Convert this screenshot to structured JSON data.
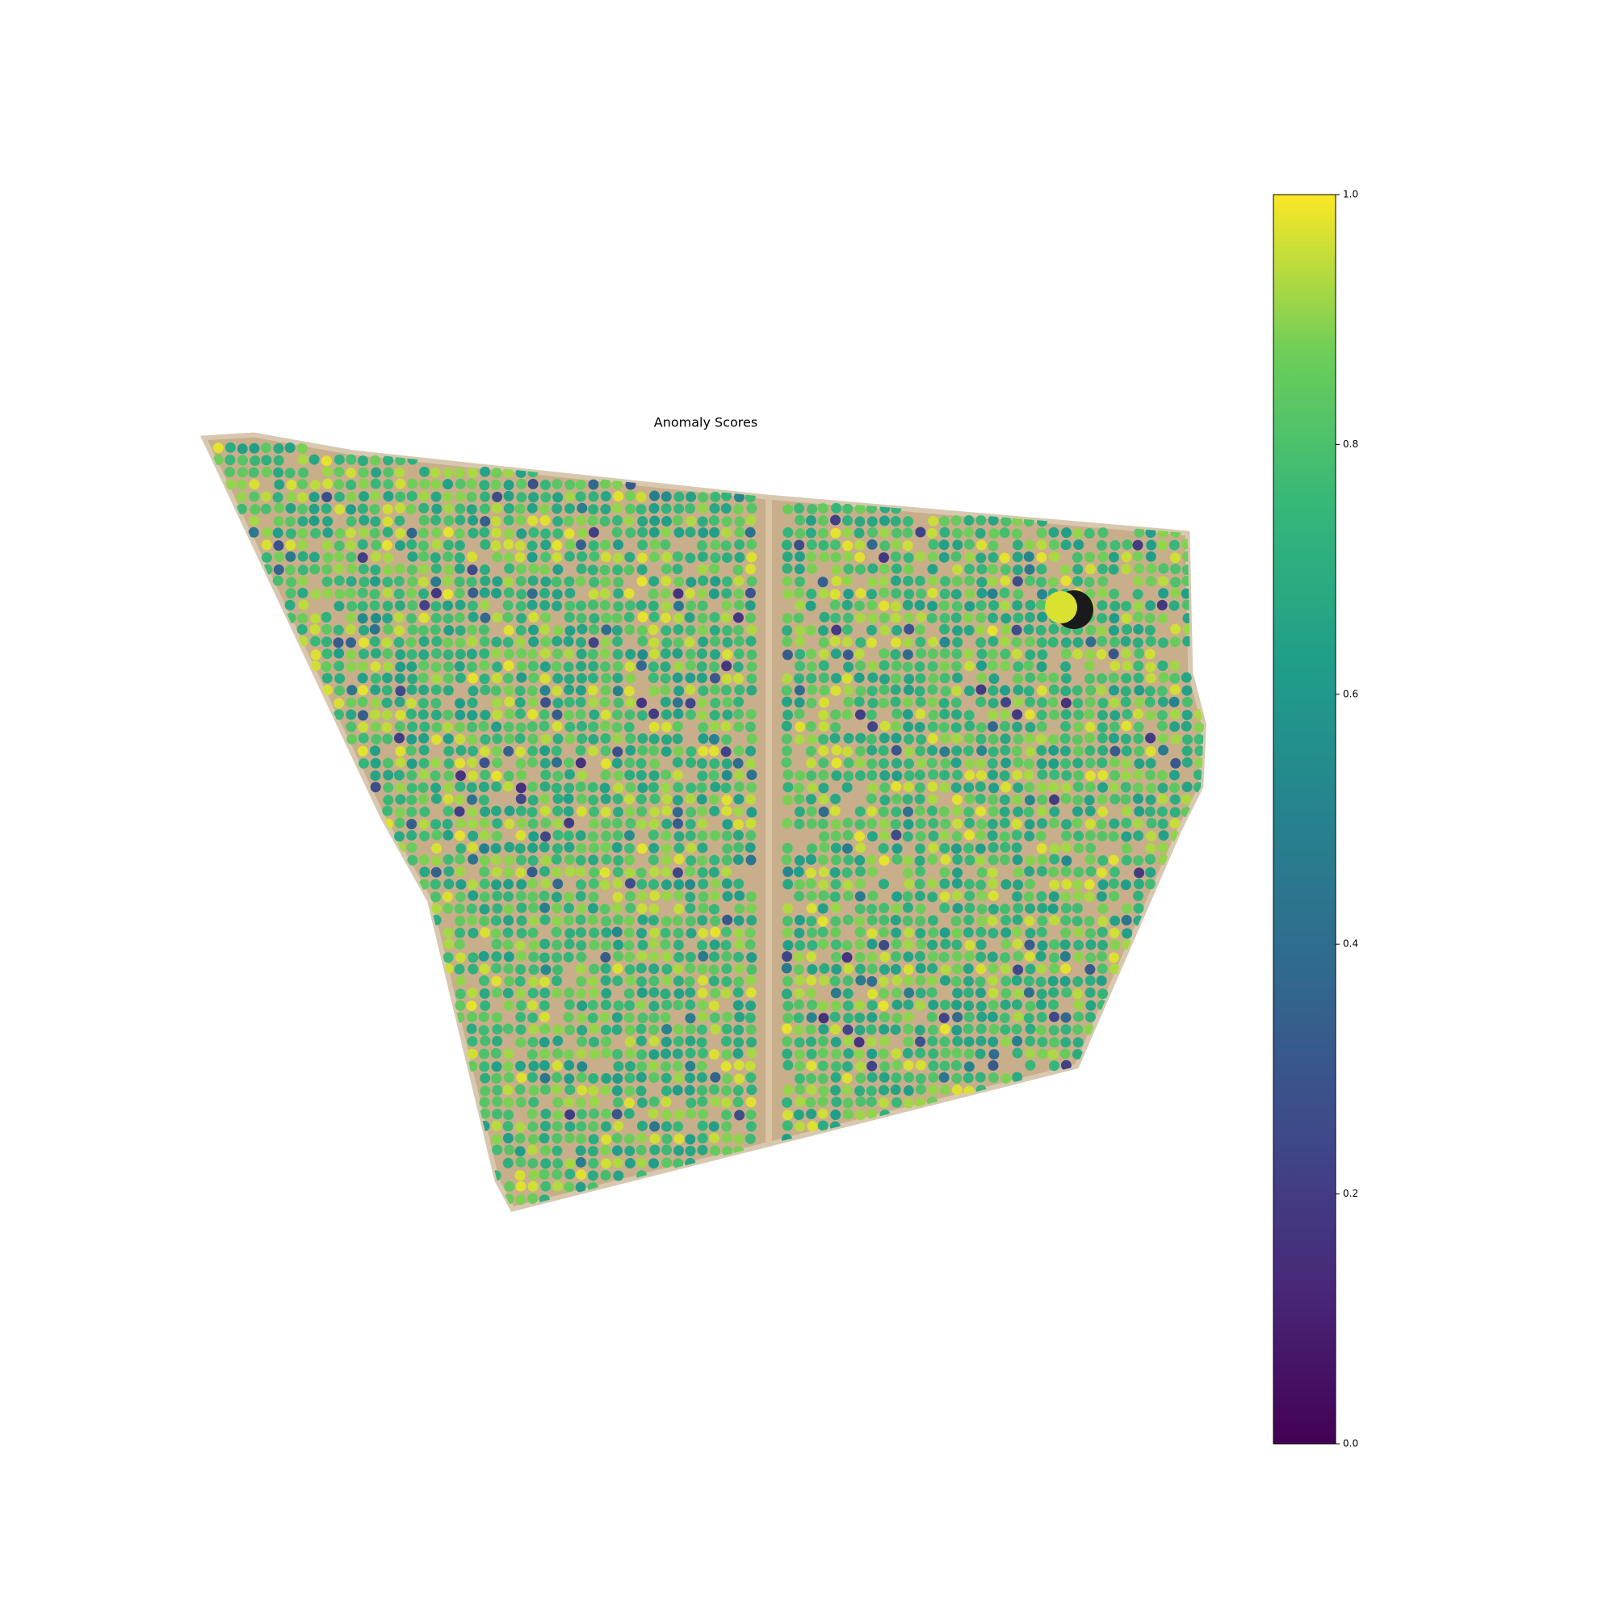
{
  "map": {
    "title": "Anomaly Scores"
  },
  "colorbar": {
    "lim": [
      0,
      1
    ],
    "ticks": [
      {
        "value": 0,
        "label": "0.0"
      },
      0.2,
      0.4,
      0.6,
      0.8,
      {
        "value": 1,
        "label": "1.0"
      }
    ]
  }
}
